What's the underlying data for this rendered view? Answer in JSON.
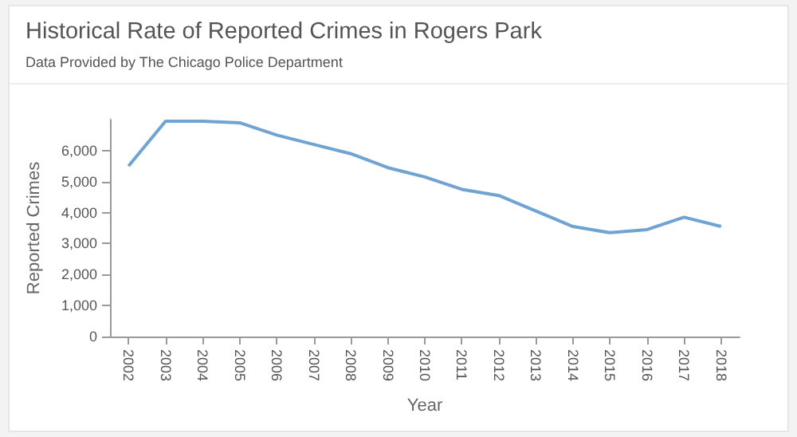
{
  "chart_data": {
    "type": "line",
    "title": "Historical Rate of Reported Crimes in Rogers Park",
    "subtitle": "Data Provided by The Chicago Police Department",
    "xlabel": "Year",
    "ylabel": "Reported Crimes",
    "categories": [
      "2002",
      "2003",
      "2004",
      "2005",
      "2006",
      "2007",
      "2008",
      "2009",
      "2010",
      "2011",
      "2012",
      "2013",
      "2014",
      "2015",
      "2016",
      "2017",
      "2018"
    ],
    "series": [
      {
        "color": "#6fa3d2",
        "values": [
          5500,
          6950,
          6950,
          6900,
          6500,
          6200,
          5900,
          5450,
          5150,
          4750,
          4550,
          4050,
          3550,
          3350,
          3450,
          3850,
          3550
        ]
      }
    ],
    "ylim": [
      0,
      7000
    ],
    "yticks": [
      0,
      {
        "value": 1000,
        "label": "1,000"
      },
      {
        "value": 2000,
        "label": "2,000"
      },
      {
        "value": 3000,
        "label": "3,000"
      },
      {
        "value": 4000,
        "label": "4,000"
      },
      {
        "value": 5000,
        "label": "5,000"
      },
      {
        "value": 6000,
        "label": "6,000"
      }
    ],
    "grid": false,
    "marker": "none",
    "line_style": "solid"
  }
}
